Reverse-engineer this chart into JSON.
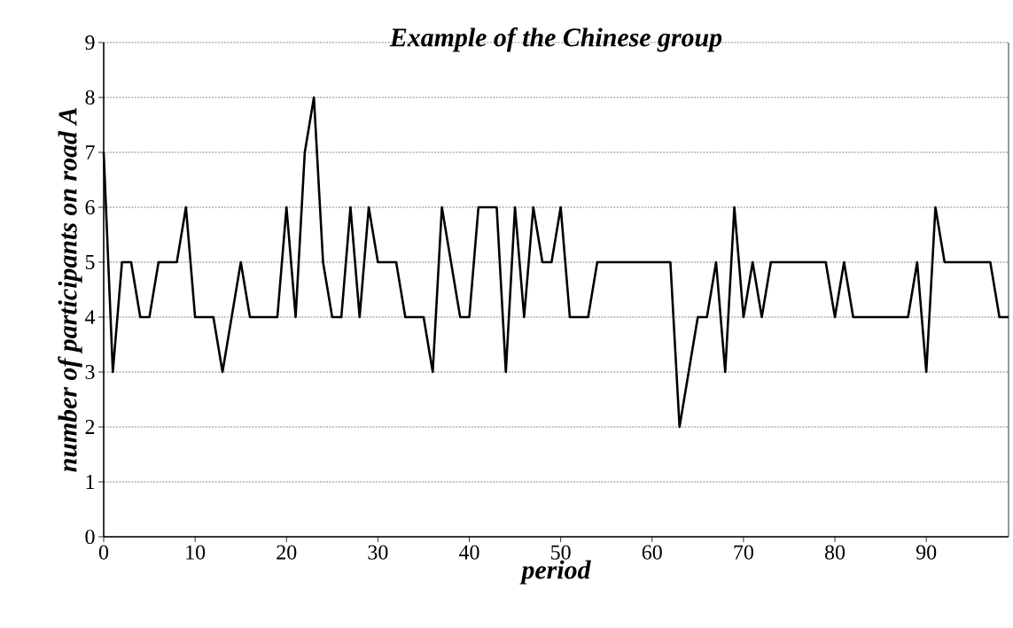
{
  "chart_data": {
    "type": "line",
    "title": "Example of the Chinese group",
    "xlabel": "period",
    "ylabel": "number of participants on road A",
    "x": [
      0,
      1,
      2,
      3,
      4,
      5,
      6,
      7,
      8,
      9,
      10,
      11,
      12,
      13,
      14,
      15,
      16,
      17,
      18,
      19,
      20,
      21,
      22,
      23,
      24,
      25,
      26,
      27,
      28,
      29,
      30,
      31,
      32,
      33,
      34,
      35,
      36,
      37,
      38,
      39,
      40,
      41,
      42,
      43,
      44,
      45,
      46,
      47,
      48,
      49,
      50,
      51,
      52,
      53,
      54,
      55,
      56,
      57,
      58,
      59,
      60,
      61,
      62,
      63,
      64,
      65,
      66,
      67,
      68,
      69,
      70,
      71,
      72,
      73,
      74,
      75,
      76,
      77,
      78,
      79,
      80,
      81,
      82,
      83,
      84,
      85,
      86,
      87,
      88,
      89,
      90,
      91,
      92,
      93,
      94,
      95,
      96,
      97,
      98,
      99
    ],
    "values": [
      7,
      3,
      5,
      5,
      4,
      4,
      5,
      5,
      5,
      6,
      4,
      4,
      4,
      3,
      4,
      5,
      4,
      4,
      4,
      4,
      6,
      4,
      7,
      8,
      5,
      4,
      4,
      6,
      4,
      6,
      5,
      5,
      5,
      4,
      4,
      4,
      3,
      6,
      5,
      4,
      4,
      6,
      6,
      6,
      3,
      6,
      4,
      6,
      5,
      5,
      6,
      4,
      4,
      4,
      5,
      5,
      5,
      5,
      5,
      5,
      5,
      5,
      5,
      2,
      3,
      4,
      4,
      5,
      3,
      6,
      4,
      5,
      4,
      5,
      5,
      5,
      5,
      5,
      5,
      5,
      4,
      5,
      4,
      4,
      4,
      4,
      4,
      4,
      4,
      5,
      3,
      6,
      5,
      5,
      5,
      5,
      5,
      5,
      4,
      4
    ],
    "color": "#000000",
    "xlim": [
      0,
      99
    ],
    "xticks": [
      0,
      10,
      20,
      30,
      40,
      50,
      60,
      70,
      80,
      90
    ],
    "ylim": [
      0,
      9
    ],
    "yticks": [
      0,
      1,
      2,
      3,
      4,
      5,
      6,
      7,
      8,
      9
    ],
    "grid": "y",
    "line_style": "solid",
    "marker": "none"
  }
}
